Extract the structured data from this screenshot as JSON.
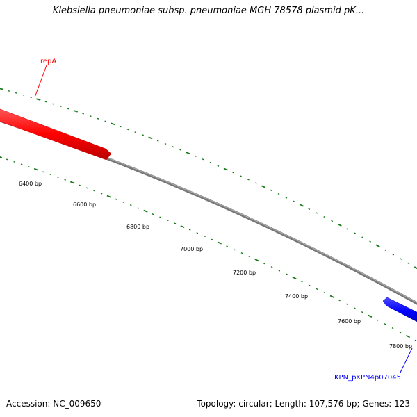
{
  "title": "Klebsiella pneumoniae subsp. pneumoniae MGH 78578 plasmid pK...",
  "footer": {
    "accession": "Accession: NC_009650",
    "summary": "Topology: circular; Length: 107,576 bp; Genes: 123"
  },
  "genes": [
    {
      "label": "repA",
      "strand": "forward",
      "color": "#ff0000"
    },
    {
      "label": "KPN_pKPN4p07045",
      "strand": "forward",
      "color": "#0000ff"
    }
  ],
  "ticks": [
    "6400 bp",
    "6600 bp",
    "6800 bp",
    "7000 bp",
    "7200 bp",
    "7400 bp",
    "7600 bp",
    "7800 bp"
  ],
  "colors": {
    "backbone": "#888888",
    "ticks": "#1a7a1a",
    "repA": "#ff0000",
    "other_gene": "#0000ff"
  }
}
